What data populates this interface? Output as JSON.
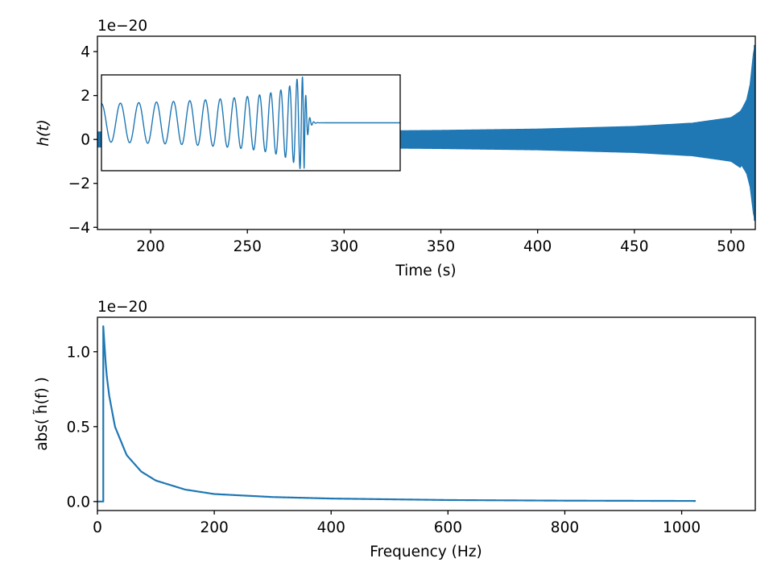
{
  "chart_data": [
    {
      "type": "line",
      "panel": "time-domain",
      "xlabel": "Time (s)",
      "ylabel": "h(t)",
      "y_offset_text": "1e−20",
      "xlim": [
        172.5,
        512.5
      ],
      "ylim": [
        -4.1,
        4.7
      ],
      "xticks": [
        "200",
        "250",
        "300",
        "350",
        "400",
        "450",
        "500"
      ],
      "yticks": [
        "−4",
        "−2",
        "0",
        "2",
        "4"
      ],
      "series": [
        {
          "description_of_shape": "chirp",
          "envelope_t": [
            172.5,
            300,
            350,
            400,
            450,
            480,
            500,
            505,
            508,
            510,
            511,
            512
          ],
          "envelope_amp": [
            0.35,
            0.38,
            0.42,
            0.48,
            0.6,
            0.75,
            1.0,
            1.3,
            1.8,
            2.6,
            3.6,
            4.3
          ],
          "min_amp": -3.7
        }
      ],
      "inset": {
        "xlim": [
          510.0,
          512.5
        ],
        "ylim": [
          -4.5,
          4.5
        ],
        "peak_time": 511.7
      }
    },
    {
      "type": "line",
      "panel": "frequency-domain",
      "xlabel": "Frequency (Hz)",
      "ylabel": "abs( h̃(f) )",
      "y_offset_text": "1e−20",
      "xlim": [
        0,
        1126
      ],
      "ylim": [
        -0.06,
        1.23
      ],
      "xticks": [
        "0",
        "200",
        "400",
        "600",
        "800",
        "1000"
      ],
      "yticks": [
        "0.0",
        "0.5",
        "1.0"
      ],
      "series": [
        {
          "f_start": 10,
          "f_end": 1024,
          "peak_value": 1.17,
          "f": [
            10,
            15,
            20,
            30,
            50,
            75,
            100,
            150,
            200,
            300,
            400,
            600,
            800,
            1024
          ],
          "abs_h": [
            1.17,
            0.87,
            0.71,
            0.5,
            0.31,
            0.2,
            0.14,
            0.08,
            0.05,
            0.03,
            0.02,
            0.01,
            0.006,
            0.004
          ]
        }
      ]
    }
  ]
}
